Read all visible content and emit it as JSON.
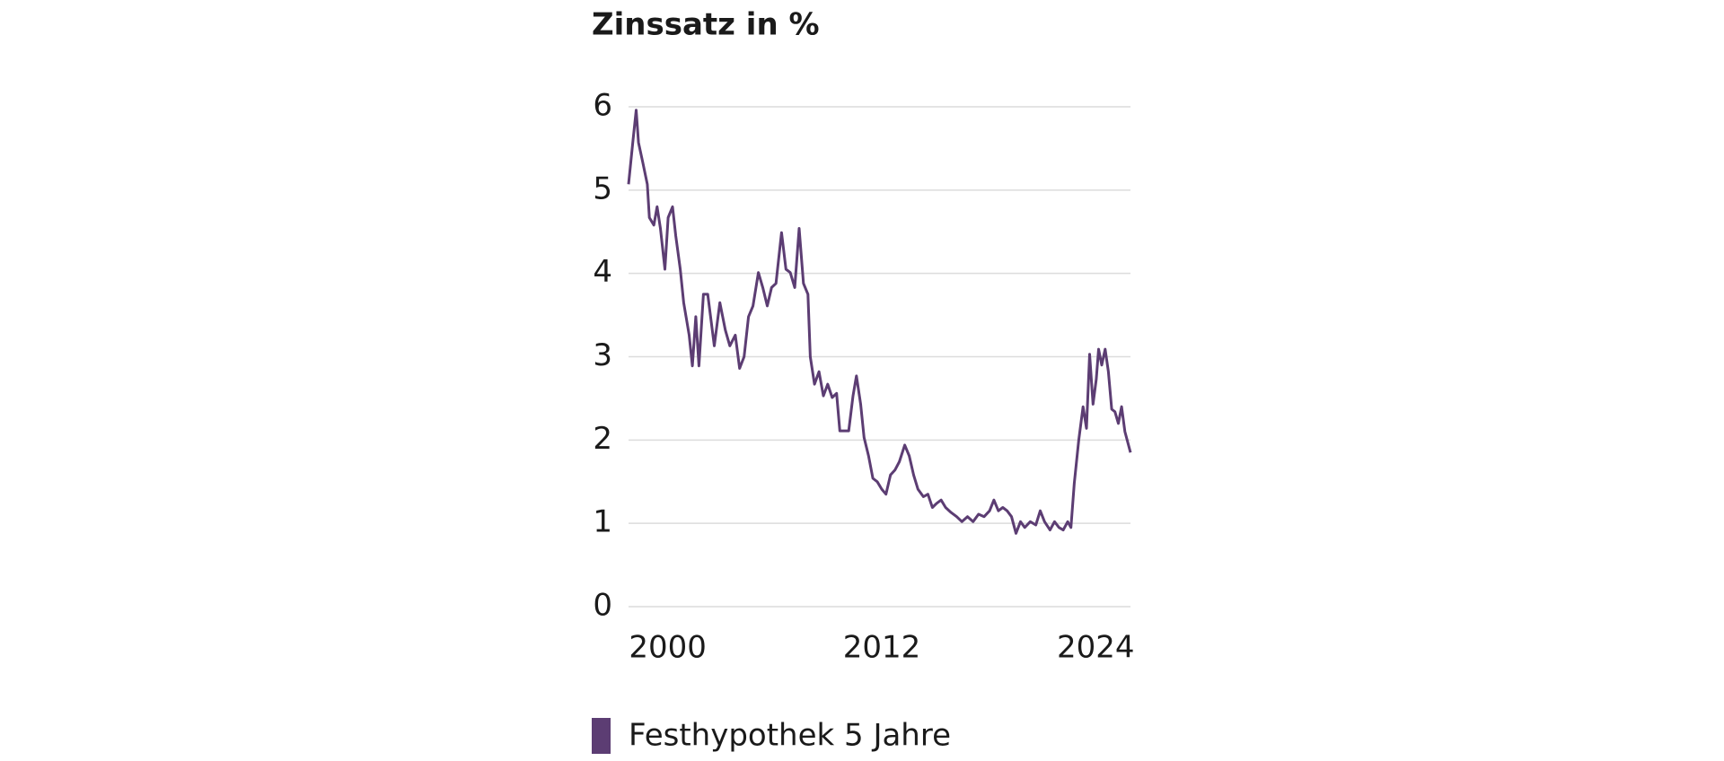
{
  "chart_data": {
    "type": "line",
    "title": "Zinssatz in %",
    "x": [
      1997.8,
      1998.05,
      1998.23,
      1998.36,
      1998.6,
      1998.85,
      1998.97,
      1999.22,
      1999.4,
      1999.59,
      1999.84,
      2000.02,
      2000.27,
      2000.45,
      2000.7,
      2000.89,
      2001.2,
      2001.38,
      2001.57,
      2001.75,
      2002.0,
      2002.24,
      2002.61,
      2002.92,
      2003.23,
      2003.48,
      2003.79,
      2004.03,
      2004.28,
      2004.53,
      2004.78,
      2005.08,
      2005.33,
      2005.58,
      2005.82,
      2006.07,
      2006.38,
      2006.63,
      2006.87,
      2007.12,
      2007.37,
      2007.61,
      2007.86,
      2007.99,
      2008.23,
      2008.48,
      2008.73,
      2008.97,
      2009.22,
      2009.47,
      2009.65,
      2009.9,
      2010.15,
      2010.39,
      2010.58,
      2010.82,
      2011.01,
      2011.26,
      2011.5,
      2011.75,
      2012.0,
      2012.24,
      2012.49,
      2012.74,
      2012.99,
      2013.29,
      2013.54,
      2013.79,
      2014.03,
      2014.34,
      2014.59,
      2014.84,
      2015.08,
      2015.33,
      2015.58,
      2015.89,
      2016.2,
      2016.5,
      2016.81,
      2017.12,
      2017.43,
      2017.74,
      2018.05,
      2018.29,
      2018.54,
      2018.79,
      2019.03,
      2019.28,
      2019.53,
      2019.78,
      2020.02,
      2020.33,
      2020.64,
      2020.89,
      2021.13,
      2021.44,
      2021.69,
      2021.94,
      2022.18,
      2022.43,
      2022.61,
      2022.8,
      2023.05,
      2023.29,
      2023.48,
      2023.66,
      2023.85,
      2024.03,
      2024.16,
      2024.34,
      2024.53,
      2024.71,
      2024.9,
      2025.08,
      2025.27,
      2025.45,
      2025.64,
      2025.95
    ],
    "series": [
      {
        "name": "Festhypothek 5 Jahre",
        "color": "#5c3d73",
        "values": [
          5.07,
          5.6,
          5.96,
          5.57,
          5.33,
          5.07,
          4.67,
          4.58,
          4.8,
          4.54,
          4.05,
          4.67,
          4.8,
          4.45,
          4.05,
          3.65,
          3.26,
          2.89,
          3.48,
          2.89,
          3.75,
          3.75,
          3.13,
          3.65,
          3.32,
          3.13,
          3.26,
          2.86,
          3.0,
          3.48,
          3.61,
          4.01,
          3.83,
          3.61,
          3.83,
          3.88,
          4.49,
          4.05,
          4.01,
          3.83,
          4.54,
          3.88,
          3.75,
          3.0,
          2.67,
          2.82,
          2.53,
          2.67,
          2.51,
          2.56,
          2.11,
          2.11,
          2.11,
          2.53,
          2.77,
          2.43,
          2.03,
          1.81,
          1.54,
          1.5,
          1.41,
          1.35,
          1.58,
          1.64,
          1.74,
          1.94,
          1.81,
          1.58,
          1.41,
          1.32,
          1.35,
          1.19,
          1.24,
          1.28,
          1.19,
          1.13,
          1.08,
          1.02,
          1.08,
          1.02,
          1.11,
          1.08,
          1.15,
          1.28,
          1.15,
          1.19,
          1.15,
          1.08,
          0.88,
          1.02,
          0.95,
          1.02,
          0.98,
          1.15,
          1.02,
          0.92,
          1.02,
          0.95,
          0.92,
          1.02,
          0.95,
          1.48,
          2.0,
          2.4,
          2.14,
          3.03,
          2.43,
          2.73,
          3.09,
          2.9,
          3.09,
          2.82,
          2.37,
          2.34,
          2.2,
          2.4,
          2.1,
          1.85
        ]
      }
    ],
    "xlim": [
      1997.8,
      2025.95
    ],
    "xticks": [
      2000,
      2012,
      2024
    ],
    "ylim": [
      0,
      6
    ],
    "yticks": [
      0,
      1,
      2,
      3,
      4,
      5,
      6
    ],
    "grid": true,
    "legend": "bottom"
  }
}
